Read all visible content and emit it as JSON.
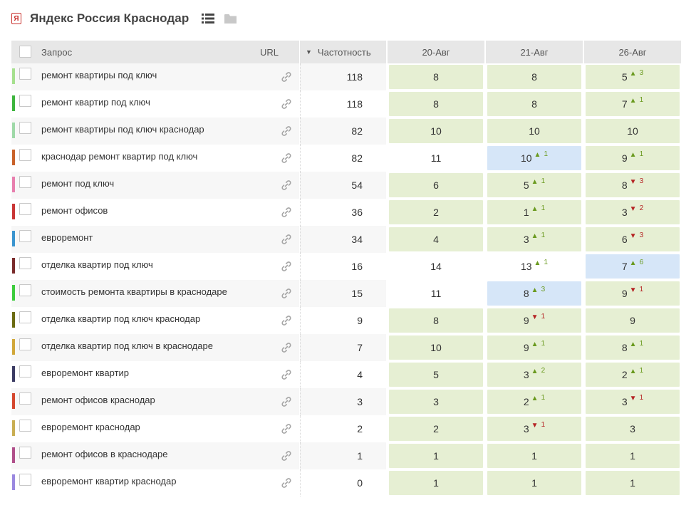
{
  "header": {
    "engine_icon": "Я",
    "title": "Яндекс Россия Краснодар",
    "list_icon": "list-icon",
    "folder_icon": "folder-icon"
  },
  "table": {
    "headers": {
      "query": "Запрос",
      "url": "URL",
      "freq": "Частотность",
      "sort_indicator": "▼",
      "dates": [
        "20-Авг",
        "21-Авг",
        "26-Авг"
      ]
    },
    "rows": [
      {
        "color": "#a6e08f",
        "query": "ремонт квартиры под ключ",
        "freq": "118",
        "cells": [
          {
            "v": "8",
            "bg": "green"
          },
          {
            "v": "8",
            "bg": "green"
          },
          {
            "v": "5",
            "bg": "green",
            "dir": "up",
            "d": "3"
          }
        ]
      },
      {
        "color": "#3db53d",
        "query": "ремонт квартир под ключ",
        "freq": "118",
        "cells": [
          {
            "v": "8",
            "bg": "green"
          },
          {
            "v": "8",
            "bg": "green"
          },
          {
            "v": "7",
            "bg": "green",
            "dir": "up",
            "d": "1"
          }
        ]
      },
      {
        "color": "#9fd9a8",
        "query": "ремонт квартиры под ключ краснодар",
        "freq": "82",
        "cells": [
          {
            "v": "10",
            "bg": "green"
          },
          {
            "v": "10",
            "bg": "green"
          },
          {
            "v": "10",
            "bg": "green"
          }
        ]
      },
      {
        "color": "#c9622a",
        "query": "краснодар ремонт квартир под ключ",
        "freq": "82",
        "cells": [
          {
            "v": "11",
            "bg": "plain"
          },
          {
            "v": "10",
            "bg": "blue",
            "dir": "up",
            "d": "1"
          },
          {
            "v": "9",
            "bg": "green",
            "dir": "up",
            "d": "1"
          }
        ]
      },
      {
        "color": "#e87fae",
        "query": "ремонт под ключ",
        "freq": "54",
        "cells": [
          {
            "v": "6",
            "bg": "green"
          },
          {
            "v": "5",
            "bg": "green",
            "dir": "up",
            "d": "1"
          },
          {
            "v": "8",
            "bg": "green",
            "dir": "down",
            "d": "3"
          }
        ]
      },
      {
        "color": "#c93535",
        "query": "ремонт офисов",
        "freq": "36",
        "cells": [
          {
            "v": "2",
            "bg": "green"
          },
          {
            "v": "1",
            "bg": "green",
            "dir": "up",
            "d": "1"
          },
          {
            "v": "3",
            "bg": "green",
            "dir": "down",
            "d": "2"
          }
        ]
      },
      {
        "color": "#3a94cf",
        "query": "евроремонт",
        "freq": "34",
        "cells": [
          {
            "v": "4",
            "bg": "green"
          },
          {
            "v": "3",
            "bg": "green",
            "dir": "up",
            "d": "1"
          },
          {
            "v": "6",
            "bg": "green",
            "dir": "down",
            "d": "3"
          }
        ]
      },
      {
        "color": "#7a2b2b",
        "query": "отделка квартир под ключ",
        "freq": "16",
        "cells": [
          {
            "v": "14",
            "bg": "plain"
          },
          {
            "v": "13",
            "bg": "plain",
            "dir": "up",
            "d": "1"
          },
          {
            "v": "7",
            "bg": "blue",
            "dir": "up",
            "d": "6"
          }
        ]
      },
      {
        "color": "#3ccc3c",
        "query": "стоимость ремонта квартиры в краснодаре",
        "freq": "15",
        "cells": [
          {
            "v": "11",
            "bg": "plain"
          },
          {
            "v": "8",
            "bg": "blue",
            "dir": "up",
            "d": "3"
          },
          {
            "v": "9",
            "bg": "green",
            "dir": "down",
            "d": "1"
          }
        ]
      },
      {
        "color": "#6b6b12",
        "query": "отделка квартир под ключ краснодар",
        "freq": "9",
        "cells": [
          {
            "v": "8",
            "bg": "green"
          },
          {
            "v": "9",
            "bg": "green",
            "dir": "down",
            "d": "1"
          },
          {
            "v": "9",
            "bg": "green"
          }
        ]
      },
      {
        "color": "#d1a73a",
        "query": "отделка квартир под ключ в краснодаре",
        "freq": "7",
        "cells": [
          {
            "v": "10",
            "bg": "green"
          },
          {
            "v": "9",
            "bg": "green",
            "dir": "up",
            "d": "1"
          },
          {
            "v": "8",
            "bg": "green",
            "dir": "up",
            "d": "1"
          }
        ]
      },
      {
        "color": "#3b3b63",
        "query": "евроремонт квартир",
        "freq": "4",
        "cells": [
          {
            "v": "5",
            "bg": "green"
          },
          {
            "v": "3",
            "bg": "green",
            "dir": "up",
            "d": "2"
          },
          {
            "v": "2",
            "bg": "green",
            "dir": "up",
            "d": "1"
          }
        ]
      },
      {
        "color": "#d5472e",
        "query": "ремонт офисов краснодар",
        "freq": "3",
        "cells": [
          {
            "v": "3",
            "bg": "green"
          },
          {
            "v": "2",
            "bg": "green",
            "dir": "up",
            "d": "1"
          },
          {
            "v": "3",
            "bg": "green",
            "dir": "down",
            "d": "1"
          }
        ]
      },
      {
        "color": "#c9ae53",
        "query": "евроремонт краснодар",
        "freq": "2",
        "cells": [
          {
            "v": "2",
            "bg": "green"
          },
          {
            "v": "3",
            "bg": "green",
            "dir": "down",
            "d": "1"
          },
          {
            "v": "3",
            "bg": "green"
          }
        ]
      },
      {
        "color": "#b04f8a",
        "query": "ремонт офисов в краснодаре",
        "freq": "1",
        "cells": [
          {
            "v": "1",
            "bg": "green"
          },
          {
            "v": "1",
            "bg": "green"
          },
          {
            "v": "1",
            "bg": "green"
          }
        ]
      },
      {
        "color": "#9a88e0",
        "query": "евроремонт квартир краснодар",
        "freq": "0",
        "cells": [
          {
            "v": "1",
            "bg": "green"
          },
          {
            "v": "1",
            "bg": "green"
          },
          {
            "v": "1",
            "bg": "green"
          }
        ]
      }
    ]
  }
}
